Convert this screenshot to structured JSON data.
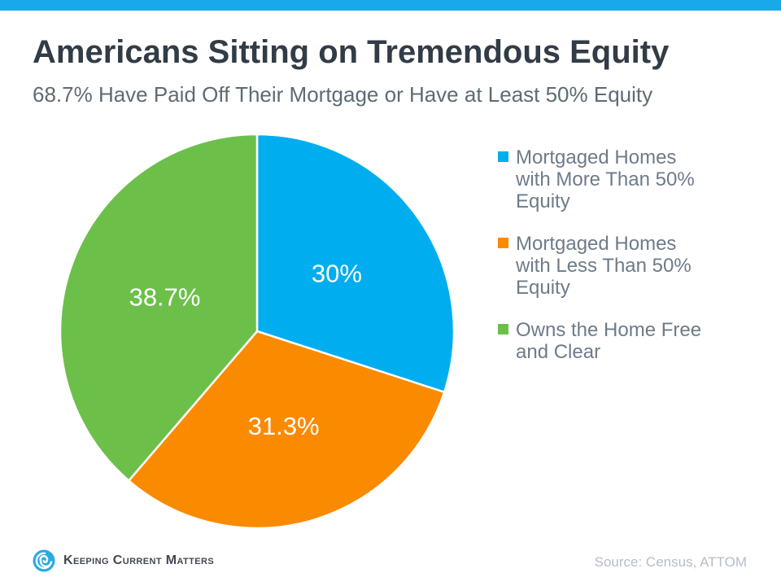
{
  "header": {
    "title": "Americans Sitting on Tremendous Equity",
    "subtitle": "68.7% Have Paid Off Their Mortgage or Have at Least 50% Equity"
  },
  "chart_data": {
    "type": "pie",
    "title": "Americans Sitting on Tremendous Equity",
    "subtitle": "68.7% Have Paid Off Their Mortgage or Have at Least 50% Equity",
    "direction": "clockwise",
    "start_angle_deg": 0,
    "legend_position": "right",
    "label_color": "#FFFFFF",
    "series": [
      {
        "name": "Mortgaged Homes with More Than 50% Equity",
        "value": 30,
        "label": "30%",
        "color": "#00AEEF"
      },
      {
        "name": "Mortgaged Homes with Less Than 50% Equity",
        "value": 31.3,
        "label": "31.3%",
        "color": "#FA8A00"
      },
      {
        "name": "Owns the Home Free and Clear",
        "value": 38.7,
        "label": "38.7%",
        "color": "#6CC04A"
      }
    ]
  },
  "footer": {
    "brand": "Keeping Current Matters",
    "source": "Source: Census, ATTOM"
  },
  "colors": {
    "top_bar": "#18A9EA",
    "title_text": "#323C46",
    "subtitle_text": "#5D6B74",
    "legend_text": "#6E7B89",
    "brand_text": "#43484E",
    "source_text": "#B4BEC8",
    "logo_blue": "#29ABE2",
    "slice_divider": "#FFFFFF"
  }
}
